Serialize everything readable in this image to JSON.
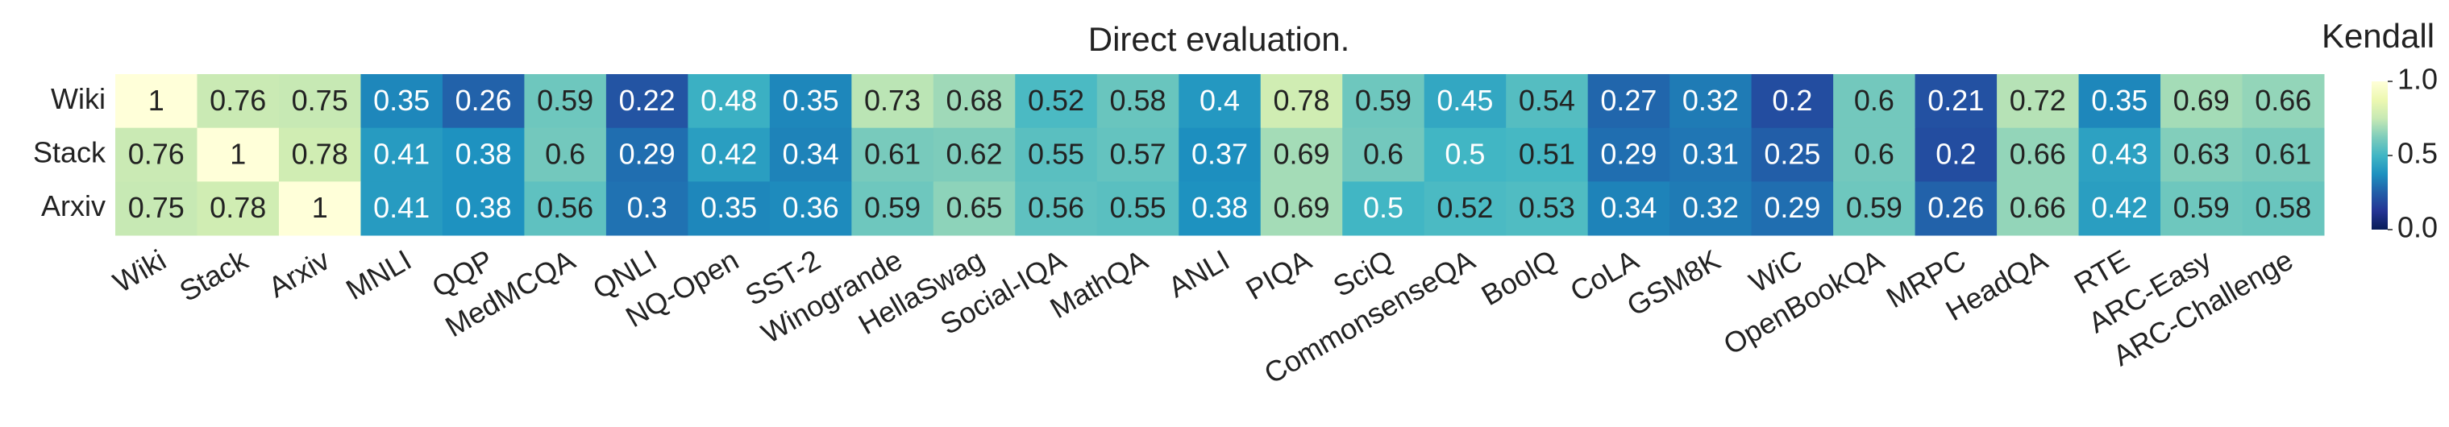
{
  "chart_data": {
    "type": "heatmap",
    "title": "Direct evaluation.",
    "rows": [
      "Wiki",
      "Stack",
      "Arxiv"
    ],
    "categories": [
      "Wiki",
      "Stack",
      "Arxiv",
      "MNLI",
      "QQP",
      "MedMCQA",
      "QNLI",
      "NQ-Open",
      "SST-2",
      "Winogrande",
      "HellaSwag",
      "Social-IQA",
      "MathQA",
      "ANLI",
      "PIQA",
      "SciQ",
      "CommonsenseQA",
      "BoolQ",
      "CoLA",
      "GSM8K",
      "WiC",
      "OpenBookQA",
      "MRPC",
      "HeadQA",
      "RTE",
      "ARC-Easy",
      "ARC-Challenge"
    ],
    "values": [
      [
        1,
        0.76,
        0.75,
        0.35,
        0.26,
        0.59,
        0.22,
        0.48,
        0.35,
        0.73,
        0.68,
        0.52,
        0.58,
        0.4,
        0.78,
        0.59,
        0.45,
        0.54,
        0.27,
        0.32,
        0.2,
        0.6,
        0.21,
        0.72,
        0.35,
        0.69,
        0.66
      ],
      [
        0.76,
        1,
        0.78,
        0.41,
        0.38,
        0.6,
        0.29,
        0.42,
        0.34,
        0.61,
        0.62,
        0.55,
        0.57,
        0.37,
        0.69,
        0.6,
        0.5,
        0.51,
        0.29,
        0.31,
        0.25,
        0.6,
        0.2,
        0.66,
        0.43,
        0.63,
        0.61
      ],
      [
        0.75,
        0.78,
        1,
        0.41,
        0.38,
        0.56,
        0.3,
        0.35,
        0.36,
        0.59,
        0.65,
        0.56,
        0.55,
        0.38,
        0.69,
        0.5,
        0.52,
        0.53,
        0.34,
        0.32,
        0.29,
        0.59,
        0.26,
        0.66,
        0.42,
        0.59,
        0.58
      ]
    ],
    "colormap": "YlGnBu_r",
    "colorbar": {
      "label": "Kendall",
      "lim": [
        0,
        1
      ],
      "ticks": [
        {
          "value": 0,
          "label": "0.0"
        },
        {
          "value": 0.5,
          "label": "0.5"
        },
        {
          "value": 1,
          "label": "1.0"
        }
      ]
    }
  }
}
